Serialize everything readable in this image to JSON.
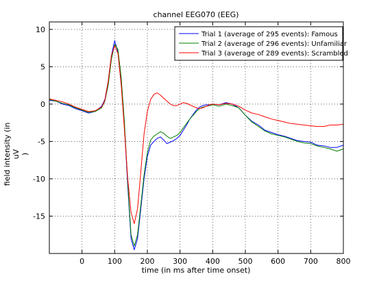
{
  "chart_data": {
    "type": "line",
    "title": "channel EEG070 (EEG)",
    "xlabel": "time (in ms after time onset)",
    "ylabel_lines": [
      "field intensity (in",
      "uV",
      ")"
    ],
    "xlim": [
      -100,
      800
    ],
    "ylim": [
      -20,
      11
    ],
    "xticks": [
      0,
      100,
      200,
      300,
      400,
      500,
      600,
      700,
      800
    ],
    "yticks": [
      10,
      5,
      0,
      -5,
      -10,
      -15
    ],
    "grid": true,
    "grid_style": "dotted",
    "legend_position": "top-right",
    "series": [
      {
        "name": "Trial 1 (average of 295 events): Famous",
        "color": "#0000ff",
        "x": [
          -100,
          -80,
          -60,
          -40,
          -20,
          0,
          20,
          40,
          60,
          70,
          80,
          90,
          100,
          110,
          120,
          130,
          140,
          150,
          160,
          170,
          180,
          190,
          200,
          210,
          220,
          230,
          240,
          250,
          260,
          270,
          280,
          290,
          300,
          310,
          320,
          330,
          340,
          350,
          360,
          370,
          380,
          390,
          400,
          420,
          440,
          460,
          480,
          500,
          520,
          540,
          560,
          580,
          600,
          620,
          640,
          660,
          680,
          700,
          720,
          740,
          760,
          780,
          800
        ],
        "y": [
          0.5,
          0.4,
          0.0,
          -0.2,
          -0.6,
          -0.9,
          -1.2,
          -1.0,
          -0.3,
          0.6,
          3.0,
          6.5,
          8.5,
          7.0,
          3.0,
          -3.0,
          -11.0,
          -18.0,
          -19.5,
          -18.0,
          -14.0,
          -10.0,
          -7.0,
          -5.5,
          -5.0,
          -4.6,
          -4.4,
          -4.8,
          -5.3,
          -5.1,
          -4.9,
          -4.6,
          -4.2,
          -3.5,
          -2.8,
          -2.0,
          -1.4,
          -0.8,
          -0.4,
          -0.2,
          -0.1,
          -0.1,
          0.0,
          -0.1,
          0.2,
          0.0,
          -0.5,
          -1.5,
          -2.3,
          -2.8,
          -3.5,
          -3.8,
          -4.1,
          -4.3,
          -4.6,
          -4.9,
          -5.0,
          -5.1,
          -5.5,
          -5.6,
          -5.8,
          -5.8,
          -5.5
        ]
      },
      {
        "name": "Trial 2 (average of 296 events): Unfamiliar",
        "color": "#008000",
        "x": [
          -100,
          -80,
          -60,
          -40,
          -20,
          0,
          20,
          40,
          60,
          70,
          80,
          90,
          100,
          110,
          120,
          130,
          140,
          150,
          160,
          170,
          180,
          190,
          200,
          210,
          220,
          230,
          240,
          250,
          260,
          270,
          280,
          290,
          300,
          310,
          320,
          330,
          340,
          350,
          360,
          370,
          380,
          390,
          400,
          420,
          440,
          460,
          480,
          500,
          520,
          540,
          560,
          580,
          600,
          620,
          640,
          660,
          680,
          700,
          720,
          740,
          760,
          780,
          800
        ],
        "y": [
          0.6,
          0.4,
          0.1,
          -0.1,
          -0.5,
          -0.8,
          -1.1,
          -1.0,
          -0.5,
          0.4,
          2.5,
          6.0,
          8.0,
          7.3,
          3.5,
          -2.5,
          -10.5,
          -17.5,
          -19.0,
          -17.5,
          -13.5,
          -9.5,
          -6.5,
          -4.8,
          -4.3,
          -4.0,
          -3.7,
          -3.9,
          -4.3,
          -4.6,
          -4.4,
          -4.2,
          -3.8,
          -3.2,
          -2.6,
          -2.0,
          -1.5,
          -1.0,
          -0.6,
          -0.4,
          -0.3,
          -0.2,
          -0.1,
          -0.3,
          0.0,
          -0.2,
          -0.5,
          -1.5,
          -2.4,
          -3.0,
          -3.6,
          -4.0,
          -4.2,
          -4.4,
          -4.7,
          -5.0,
          -5.2,
          -5.3,
          -5.6,
          -5.8,
          -6.0,
          -6.3,
          -6.0
        ]
      },
      {
        "name": "Trial 3 (average of 289 events): Scrambled",
        "color": "#ff0000",
        "x": [
          -100,
          -80,
          -60,
          -40,
          -20,
          0,
          20,
          40,
          60,
          70,
          80,
          90,
          100,
          110,
          120,
          130,
          140,
          150,
          160,
          170,
          180,
          190,
          200,
          210,
          220,
          230,
          240,
          250,
          260,
          270,
          280,
          290,
          300,
          310,
          320,
          330,
          340,
          350,
          360,
          370,
          380,
          390,
          400,
          420,
          440,
          460,
          480,
          500,
          520,
          540,
          560,
          580,
          600,
          620,
          640,
          660,
          680,
          700,
          720,
          740,
          760,
          780,
          800
        ],
        "y": [
          0.7,
          0.5,
          0.3,
          0.0,
          -0.4,
          -0.7,
          -1.0,
          -0.9,
          -0.4,
          0.5,
          3.0,
          6.5,
          7.8,
          6.8,
          2.5,
          -3.5,
          -10.0,
          -14.5,
          -16.0,
          -14.0,
          -9.0,
          -4.0,
          -1.0,
          0.6,
          1.3,
          1.5,
          1.2,
          0.8,
          0.4,
          0.0,
          -0.2,
          -0.2,
          0.0,
          0.2,
          0.1,
          -0.1,
          -0.3,
          -0.5,
          -0.6,
          -0.5,
          -0.3,
          -0.1,
          0.0,
          -0.1,
          0.1,
          0.0,
          -0.3,
          -0.8,
          -1.2,
          -1.4,
          -1.7,
          -2.0,
          -2.2,
          -2.4,
          -2.6,
          -2.7,
          -2.8,
          -2.9,
          -3.0,
          -3.0,
          -2.8,
          -2.8,
          -2.7
        ]
      }
    ]
  }
}
